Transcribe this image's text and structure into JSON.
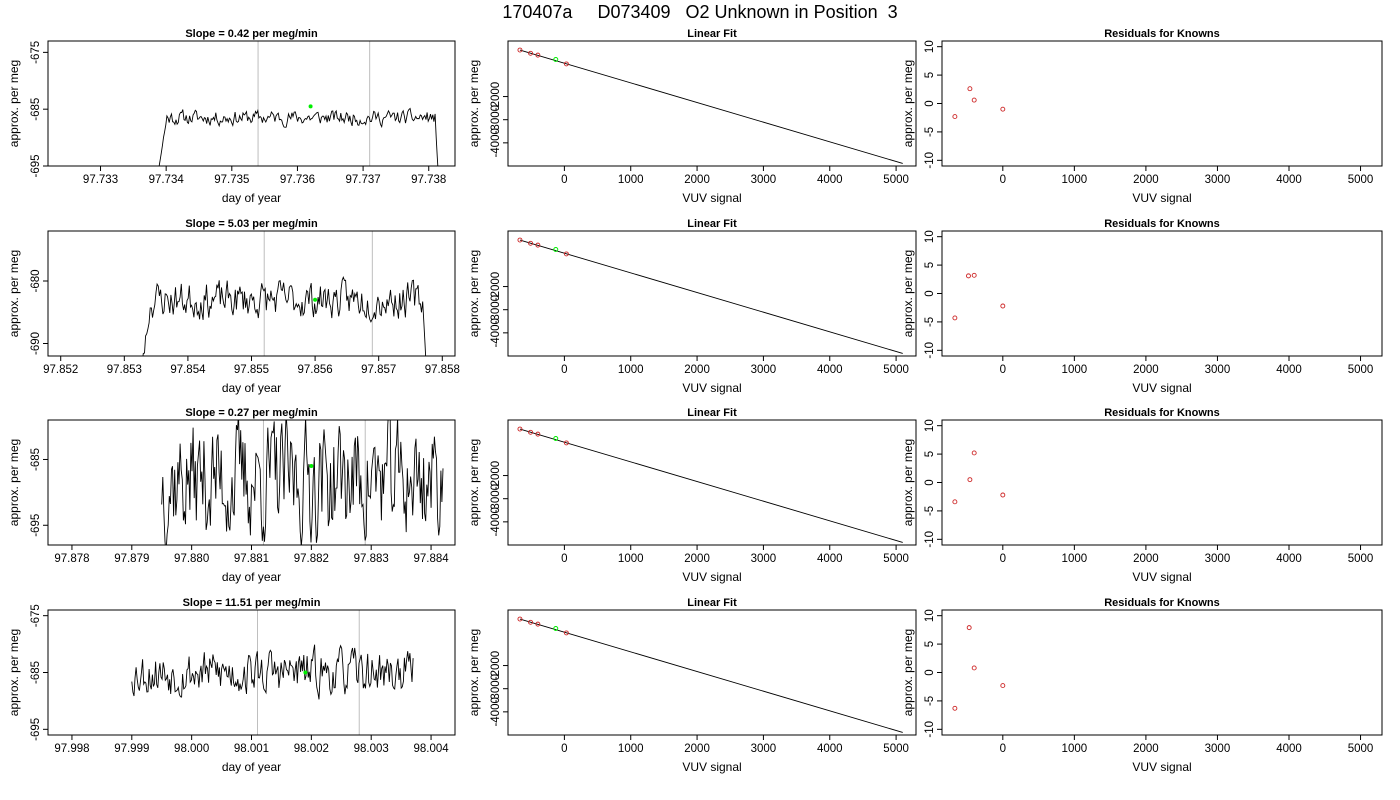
{
  "page_title": "170407a     D073409   O2 Unknown in Position  3",
  "chart_data": [
    {
      "type": "line",
      "row": 1,
      "col": 1,
      "title": "Slope =  0.42  per meg/min",
      "xlabel": "day of year",
      "ylabel": "approx. per meg",
      "xlim": [
        97.7322,
        97.7384
      ],
      "ylim": [
        -695,
        -673
      ],
      "xticks": [
        97.733,
        97.734,
        97.735,
        97.736,
        97.737,
        97.738
      ],
      "xtick_labels": [
        "97.733",
        "97.734",
        "97.735",
        "97.736",
        "97.737",
        "97.738"
      ],
      "yticks": [
        -675,
        -685,
        -695
      ],
      "ytick_labels": [
        "-675",
        "-685",
        "-695"
      ],
      "vlines": [
        97.7354,
        97.7371
      ],
      "noise": {
        "x_start": 97.7337,
        "x_end": 97.7382,
        "center": -686.5,
        "amplitude": 2.0,
        "seed": 11,
        "ramp_in": true,
        "tail_drop": true
      },
      "highlight": {
        "x": 97.7362,
        "y": -684.5
      },
      "grid": false
    },
    {
      "type": "scatter",
      "row": 1,
      "col": 2,
      "title": "Linear Fit",
      "xlabel": "VUV signal",
      "ylabel": "approx. per meg",
      "xlim": [
        -850,
        5300
      ],
      "ylim": [
        -5000,
        400
      ],
      "xticks": [
        0,
        1000,
        2000,
        3000,
        4000,
        5000
      ],
      "xtick_labels": [
        "0",
        "1000",
        "2000",
        "3000",
        "4000",
        "5000"
      ],
      "yticks": [
        -2000,
        -3000,
        -4000
      ],
      "ytick_labels": [
        "-2000",
        "-3000",
        "-4000"
      ],
      "points": [
        [
          -670,
          10
        ],
        [
          -510,
          -130
        ],
        [
          -400,
          -210
        ],
        [
          30,
          -590
        ]
      ],
      "unknown_point": [
        -130,
        -400
      ],
      "fit_line": [
        [
          -670,
          10
        ],
        [
          5100,
          -4890
        ]
      ],
      "grid": false
    },
    {
      "type": "scatter",
      "row": 1,
      "col": 3,
      "title": "Residuals for Knowns",
      "xlabel": "VUV signal",
      "ylabel": "approx. per meg",
      "xlim": [
        -850,
        5300
      ],
      "ylim": [
        -11,
        11
      ],
      "xticks": [
        0,
        1000,
        2000,
        3000,
        4000,
        5000
      ],
      "xtick_labels": [
        "0",
        "1000",
        "2000",
        "3000",
        "4000",
        "5000"
      ],
      "yticks": [
        10,
        5,
        0,
        -5,
        -10
      ],
      "ytick_labels": [
        "10",
        "5",
        "0",
        "-5",
        "-10"
      ],
      "points": [
        [
          -670,
          -2.3
        ],
        [
          -460,
          2.6
        ],
        [
          -400,
          0.6
        ],
        [
          0,
          -1.0
        ]
      ],
      "grid": false
    },
    {
      "type": "line",
      "row": 2,
      "col": 1,
      "title": "Slope =  5.03  per meg/min",
      "xlabel": "day of year",
      "ylabel": "approx. per meg",
      "xlim": [
        97.8518,
        97.8582
      ],
      "ylim": [
        -692,
        -672
      ],
      "xticks": [
        97.852,
        97.853,
        97.854,
        97.855,
        97.856,
        97.857,
        97.858
      ],
      "xtick_labels": [
        "97.852",
        "97.853",
        "97.854",
        "97.855",
        "97.856",
        "97.857",
        "97.858"
      ],
      "yticks": [
        -680,
        -690
      ],
      "ytick_labels": [
        "-680",
        "-690"
      ],
      "vlines": [
        97.8552,
        97.8569
      ],
      "noise": {
        "x_start": 97.8531,
        "x_end": 97.8578,
        "center": -683,
        "amplitude": 4.5,
        "seed": 23,
        "ramp_in": true,
        "tail_drop": true
      },
      "highlight": {
        "x": 97.856,
        "y": -683
      },
      "grid": false
    },
    {
      "type": "scatter",
      "row": 2,
      "col": 2,
      "title": "Linear Fit",
      "xlabel": "VUV signal",
      "ylabel": "approx. per meg",
      "xlim": [
        -850,
        5300
      ],
      "ylim": [
        -5000,
        400
      ],
      "xticks": [
        0,
        1000,
        2000,
        3000,
        4000,
        5000
      ],
      "xtick_labels": [
        "0",
        "1000",
        "2000",
        "3000",
        "4000",
        "5000"
      ],
      "yticks": [
        -2000,
        -3000,
        -4000
      ],
      "ytick_labels": [
        "-2000",
        "-3000",
        "-4000"
      ],
      "points": [
        [
          -670,
          10
        ],
        [
          -510,
          -130
        ],
        [
          -400,
          -210
        ],
        [
          30,
          -590
        ]
      ],
      "unknown_point": [
        -130,
        -400
      ],
      "fit_line": [
        [
          -670,
          10
        ],
        [
          5100,
          -4890
        ]
      ],
      "grid": false
    },
    {
      "type": "scatter",
      "row": 2,
      "col": 3,
      "title": "Residuals for Knowns",
      "xlabel": "VUV signal",
      "ylabel": "approx. per meg",
      "xlim": [
        -850,
        5300
      ],
      "ylim": [
        -11,
        11
      ],
      "xticks": [
        0,
        1000,
        2000,
        3000,
        4000,
        5000
      ],
      "xtick_labels": [
        "0",
        "1000",
        "2000",
        "3000",
        "4000",
        "5000"
      ],
      "yticks": [
        10,
        5,
        0,
        -5,
        -10
      ],
      "ytick_labels": [
        "10",
        "5",
        "0",
        "-5",
        "-10"
      ],
      "points": [
        [
          -670,
          -4.3
        ],
        [
          -480,
          3.1
        ],
        [
          -400,
          3.2
        ],
        [
          0,
          -2.2
        ]
      ],
      "grid": false
    },
    {
      "type": "line",
      "row": 3,
      "col": 1,
      "title": "Slope =  0.27  per meg/min",
      "xlabel": "day of year",
      "ylabel": "approx. per meg",
      "xlim": [
        97.8776,
        97.8844
      ],
      "ylim": [
        -698,
        -679
      ],
      "xticks": [
        97.878,
        97.879,
        97.88,
        97.881,
        97.882,
        97.883,
        97.884
      ],
      "xtick_labels": [
        "97.878",
        "97.879",
        "97.880",
        "97.881",
        "97.882",
        "97.883",
        "97.884"
      ],
      "yticks": [
        -685,
        -695
      ],
      "ytick_labels": [
        "-685",
        "-695"
      ],
      "vlines": [
        97.8812,
        97.8829
      ],
      "noise": {
        "x_start": 97.8795,
        "x_end": 97.8842,
        "center": -688,
        "amplitude": 14,
        "seed": 37,
        "ramp_in": false,
        "tail_drop": false
      },
      "highlight": {
        "x": 97.882,
        "y": -686
      },
      "grid": false
    },
    {
      "type": "scatter",
      "row": 3,
      "col": 2,
      "title": "Linear Fit",
      "xlabel": "VUV signal",
      "ylabel": "approx. per meg",
      "xlim": [
        -850,
        5300
      ],
      "ylim": [
        -5000,
        400
      ],
      "xticks": [
        0,
        1000,
        2000,
        3000,
        4000,
        5000
      ],
      "xtick_labels": [
        "0",
        "1000",
        "2000",
        "3000",
        "4000",
        "5000"
      ],
      "yticks": [
        -2000,
        -3000,
        -4000
      ],
      "ytick_labels": [
        "-2000",
        "-3000",
        "-4000"
      ],
      "points": [
        [
          -670,
          10
        ],
        [
          -510,
          -130
        ],
        [
          -400,
          -210
        ],
        [
          30,
          -590
        ]
      ],
      "unknown_point": [
        -130,
        -400
      ],
      "fit_line": [
        [
          -670,
          10
        ],
        [
          5100,
          -4890
        ]
      ],
      "grid": false
    },
    {
      "type": "scatter",
      "row": 3,
      "col": 3,
      "title": "Residuals for Knowns",
      "xlabel": "VUV signal",
      "ylabel": "approx. per meg",
      "xlim": [
        -850,
        5300
      ],
      "ylim": [
        -11,
        11
      ],
      "xticks": [
        0,
        1000,
        2000,
        3000,
        4000,
        5000
      ],
      "xtick_labels": [
        "0",
        "1000",
        "2000",
        "3000",
        "4000",
        "5000"
      ],
      "yticks": [
        10,
        5,
        0,
        -5,
        -10
      ],
      "ytick_labels": [
        "10",
        "5",
        "0",
        "-5",
        "-10"
      ],
      "points": [
        [
          -670,
          -3.4
        ],
        [
          -460,
          0.5
        ],
        [
          -400,
          5.2
        ],
        [
          0,
          -2.2
        ]
      ],
      "grid": false
    },
    {
      "type": "line",
      "row": 4,
      "col": 1,
      "title": "Slope =  11.51  per meg/min",
      "xlabel": "day of year",
      "ylabel": "approx. per meg",
      "xlim": [
        97.9976,
        98.0044
      ],
      "ylim": [
        -696,
        -674
      ],
      "xticks": [
        97.998,
        97.999,
        98.0,
        98.001,
        98.002,
        98.003,
        98.004
      ],
      "xtick_labels": [
        "97.998",
        "97.999",
        "98.000",
        "98.001",
        "98.002",
        "98.003",
        "98.004"
      ],
      "yticks": [
        -675,
        -685,
        -695
      ],
      "ytick_labels": [
        "-675",
        "-685",
        "-695"
      ],
      "vlines": [
        98.0011,
        98.0028
      ],
      "noise": {
        "x_start": 97.999,
        "x_end": 98.0037,
        "center": -685,
        "amplitude": 6,
        "seed": 53,
        "ramp_in": false,
        "tail_drop": false
      },
      "highlight": {
        "x": 98.0019,
        "y": -685
      },
      "grid": false
    },
    {
      "type": "scatter",
      "row": 4,
      "col": 2,
      "title": "Linear Fit",
      "xlabel": "VUV signal",
      "ylabel": "approx. per meg",
      "xlim": [
        -850,
        5300
      ],
      "ylim": [
        -5000,
        400
      ],
      "xticks": [
        0,
        1000,
        2000,
        3000,
        4000,
        5000
      ],
      "xtick_labels": [
        "0",
        "1000",
        "2000",
        "3000",
        "4000",
        "5000"
      ],
      "yticks": [
        -2000,
        -3000,
        -4000
      ],
      "ytick_labels": [
        "-2000",
        "-3000",
        "-4000"
      ],
      "points": [
        [
          -670,
          10
        ],
        [
          -510,
          -130
        ],
        [
          -400,
          -210
        ],
        [
          30,
          -590
        ]
      ],
      "unknown_point": [
        -130,
        -400
      ],
      "fit_line": [
        [
          -670,
          10
        ],
        [
          5100,
          -4890
        ]
      ],
      "grid": false
    },
    {
      "type": "scatter",
      "row": 4,
      "col": 3,
      "title": "Residuals for Knowns",
      "xlabel": "VUV signal",
      "ylabel": "approx. per meg",
      "xlim": [
        -850,
        5300
      ],
      "ylim": [
        -11,
        11
      ],
      "xticks": [
        0,
        1000,
        2000,
        3000,
        4000,
        5000
      ],
      "xtick_labels": [
        "0",
        "1000",
        "2000",
        "3000",
        "4000",
        "5000"
      ],
      "yticks": [
        10,
        5,
        0,
        -5,
        -10
      ],
      "ytick_labels": [
        "10",
        "5",
        "0",
        "-5",
        "-10"
      ],
      "points": [
        [
          -670,
          -6.3
        ],
        [
          -470,
          7.9
        ],
        [
          -400,
          0.8
        ],
        [
          0,
          -2.3
        ]
      ],
      "grid": false
    }
  ],
  "colors": {
    "line": "#000000",
    "vline": "#bebebe",
    "known_point": "#cd2626",
    "unknown_point": "#00ee00",
    "axis": "#000000"
  }
}
